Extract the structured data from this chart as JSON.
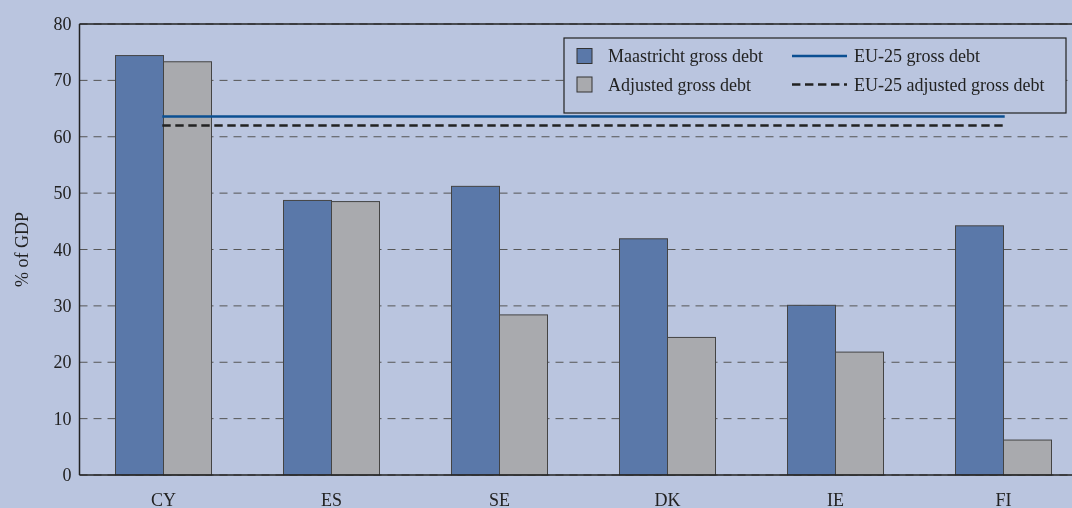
{
  "chart_data": {
    "type": "bar",
    "ylabel": "% of GDP",
    "categories": [
      "CY",
      "ES",
      "SE",
      "DK",
      "IE",
      "FI"
    ],
    "series": [
      {
        "name": "Maastricht gross debt",
        "color": "#5a78a9",
        "values": [
          74.4,
          48.7,
          51.2,
          41.9,
          30.1,
          44.2
        ]
      },
      {
        "name": "Adjusted gross debt",
        "color": "#a9aaae",
        "values": [
          73.3,
          48.5,
          28.4,
          24.4,
          21.8,
          6.2
        ]
      },
      {
        "name": "EU-25 gross debt",
        "type": "line",
        "color": "#0b4f92",
        "line_style": "solid",
        "values": [
          63.6,
          63.6,
          63.6,
          63.6,
          63.6,
          63.6
        ]
      },
      {
        "name": "EU-25 adjusted gross debt",
        "type": "line",
        "color": "#222222",
        "line_style": "dashed",
        "values": [
          62.0,
          62.0,
          62.0,
          62.0,
          62.0,
          62.0
        ]
      }
    ],
    "ylim": [
      0,
      80
    ],
    "yticks": [
      0,
      10,
      20,
      30,
      40,
      50,
      60,
      70,
      80
    ],
    "grid": "y",
    "legend": "top right"
  }
}
